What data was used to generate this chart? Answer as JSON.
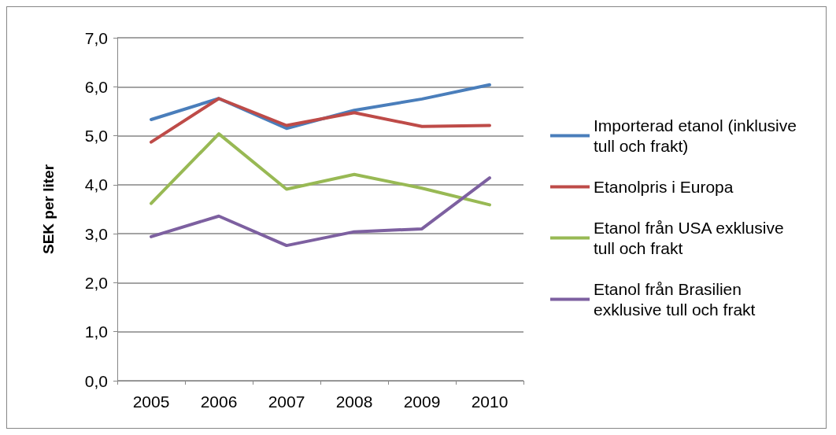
{
  "chart_data": {
    "type": "line",
    "ylabel": "SEK per liter",
    "categories": [
      "2005",
      "2006",
      "2007",
      "2008",
      "2009",
      "2010"
    ],
    "ylim": [
      0,
      7
    ],
    "yticks": [
      {
        "value": 0,
        "label": "0,0"
      },
      {
        "value": 1,
        "label": "1,0"
      },
      {
        "value": 2,
        "label": "2,0"
      },
      {
        "value": 3,
        "label": "3,0"
      },
      {
        "value": 4,
        "label": "4,0"
      },
      {
        "value": 5,
        "label": "5,0"
      },
      {
        "value": 6,
        "label": "6,0"
      },
      {
        "value": 7,
        "label": "7,0"
      }
    ],
    "grid": "y",
    "legend": "right",
    "marker": "none",
    "line_style": "solid",
    "series": [
      {
        "name": "Importerad etanol (inklusive tull och frakt)",
        "color": "#4a7ebb",
        "values": [
          5.33,
          5.76,
          5.15,
          5.52,
          5.75,
          6.04
        ]
      },
      {
        "name": "Etanolpris i Europa",
        "color": "#be4b48",
        "values": [
          4.87,
          5.76,
          5.21,
          5.47,
          5.19,
          5.21
        ]
      },
      {
        "name": "Etanol från USA exklusive tull och frakt",
        "color": "#98b954",
        "values": [
          3.62,
          5.04,
          3.91,
          4.21,
          3.93,
          3.59
        ]
      },
      {
        "name": "Etanol från Brasilien exklusive tull och frakt",
        "color": "#7d60a0",
        "values": [
          2.94,
          3.36,
          2.76,
          3.04,
          3.1,
          4.14
        ]
      }
    ]
  }
}
